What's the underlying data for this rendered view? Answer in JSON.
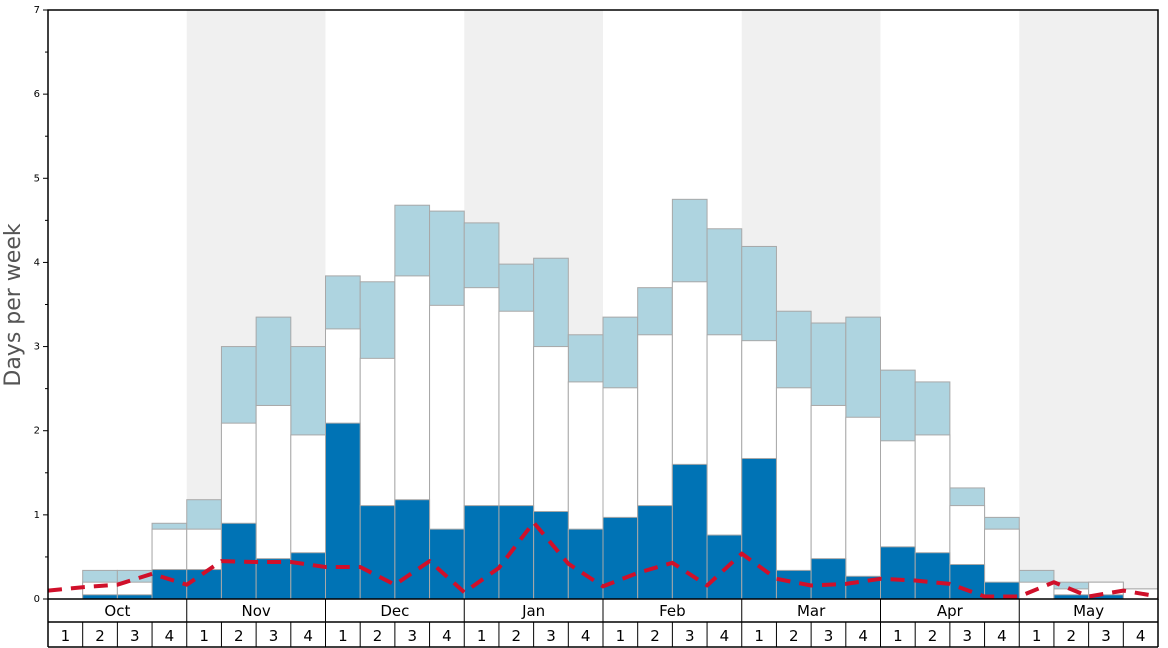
{
  "chart_data": {
    "type": "bar",
    "ylabel": "Days per week",
    "ylim": [
      0,
      7
    ],
    "yticks": [
      "0",
      "1",
      "2",
      "3",
      "4",
      "5",
      "6",
      "7"
    ],
    "months": [
      "Oct",
      "Nov",
      "Dec",
      "Jan",
      "Feb",
      "Mar",
      "Apr",
      "May"
    ],
    "week_labels": [
      "1",
      "2",
      "3",
      "4"
    ],
    "stack": "overlay",
    "series": [
      {
        "role": "dark",
        "color": "#0073b5",
        "values": [
          0,
          0.05,
          0.05,
          0.35,
          0.35,
          0.9,
          0.48,
          0.55,
          2.09,
          1.11,
          1.18,
          0.83,
          1.11,
          1.11,
          1.04,
          0.83,
          0.97,
          1.11,
          1.6,
          0.76,
          1.67,
          0.34,
          0.48,
          0.27,
          0.62,
          0.55,
          0.41,
          0.2,
          0,
          0.05,
          0.05,
          0
        ]
      },
      {
        "role": "white",
        "color": "#ffffff",
        "values": [
          0,
          0.2,
          0.2,
          0.83,
          0.83,
          2.09,
          2.3,
          1.95,
          3.21,
          2.86,
          3.84,
          3.49,
          3.7,
          3.42,
          3.0,
          2.58,
          2.51,
          3.14,
          3.77,
          3.14,
          3.07,
          2.51,
          2.3,
          2.16,
          1.88,
          1.95,
          1.11,
          0.83,
          0.2,
          0.12,
          0.2,
          0.12
        ]
      },
      {
        "role": "light",
        "color": "#aed4e0",
        "values": [
          0,
          0.34,
          0.34,
          0.9,
          1.18,
          3.0,
          3.35,
          3.0,
          3.84,
          3.77,
          4.68,
          4.61,
          4.47,
          3.98,
          4.05,
          3.14,
          3.35,
          3.7,
          4.75,
          4.4,
          4.19,
          3.42,
          3.28,
          3.35,
          2.72,
          2.58,
          1.32,
          0.97,
          0.34,
          0.2,
          0.2,
          0.12
        ]
      }
    ],
    "line": {
      "color": "#d0102a",
      "style": "dashed",
      "values": [
        0.1,
        0.14,
        0.17,
        0.3,
        0.17,
        0.45,
        0.44,
        0.44,
        0.38,
        0.38,
        0.17,
        0.45,
        0.08,
        0.37,
        0.91,
        0.42,
        0.15,
        0.31,
        0.43,
        0.16,
        0.54,
        0.24,
        0.16,
        0.18,
        0.24,
        0.22,
        0.18,
        0.03,
        0.03,
        0.2,
        0.03,
        0.1,
        0.03
      ]
    },
    "grid": false,
    "shading": {
      "alternate_months": true,
      "color": "#f0f0f0"
    }
  }
}
